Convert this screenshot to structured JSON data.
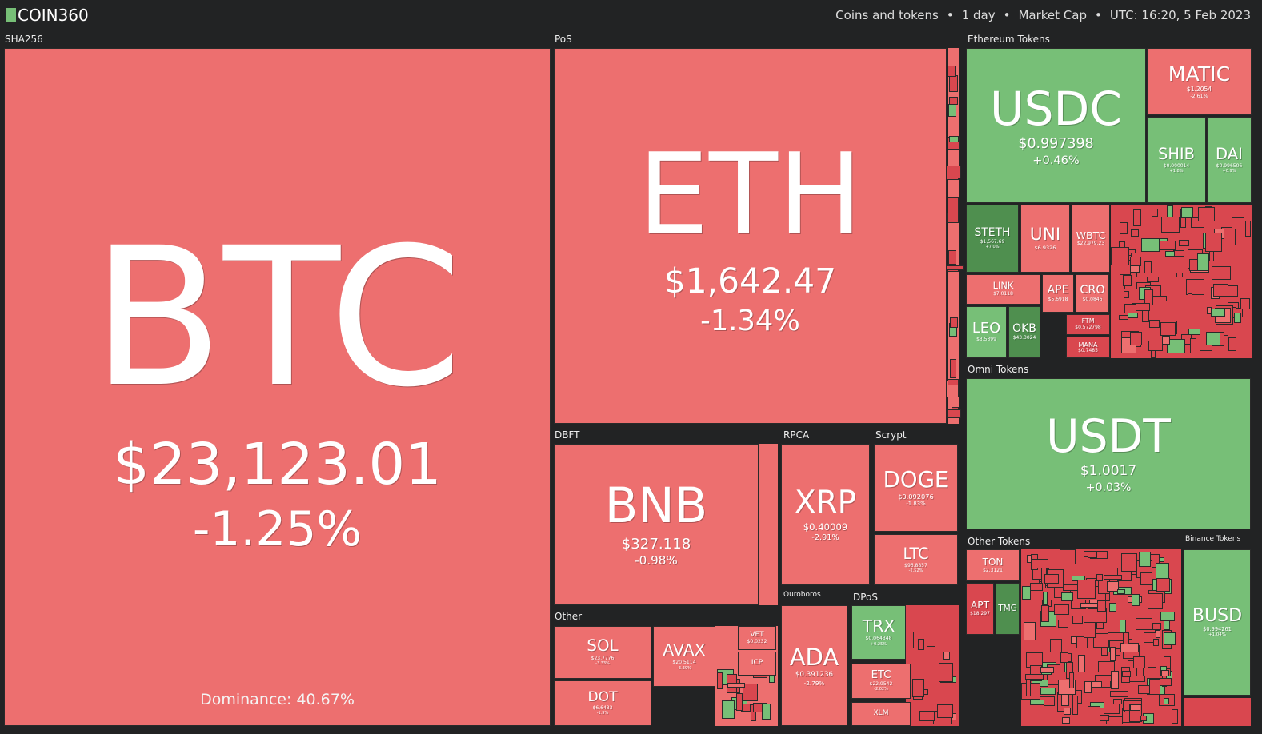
{
  "header": {
    "logo": "COIN360",
    "filters": [
      "Coins and tokens",
      "1 day",
      "Market Cap",
      "UTC: 16:20, 5 Feb 2023"
    ],
    "separator": "•"
  },
  "groups": [
    "SHA256",
    "PoS",
    "Ethereum Tokens",
    "DBFT",
    "RPCA",
    "Scrypt",
    "Other",
    "Ouroboros",
    "DPoS",
    "Omni Tokens",
    "Other Tokens",
    "Binance Tokens"
  ],
  "dominance": "Dominance: 40.67%",
  "tiles": [
    {
      "symbol": "BTC",
      "price": "$23,123.01",
      "change": "-1.25%",
      "color": "#ed6f6f"
    },
    {
      "symbol": "ETH",
      "price": "$1,642.47",
      "change": "-1.34%",
      "color": "#ed6f6f"
    },
    {
      "symbol": "BNB",
      "price": "$327.118",
      "change": "-0.98%",
      "color": "#ed6f6f"
    },
    {
      "symbol": "XRP",
      "price": "$0.40009",
      "change": "-2.91%",
      "color": "#ed6f6f"
    },
    {
      "symbol": "DOGE",
      "price": "$0.092076",
      "change": "-1.83%",
      "color": "#ed6f6f"
    },
    {
      "symbol": "LTC",
      "price": "$96.8857",
      "change": "-2.52%",
      "color": "#ed6f6f"
    },
    {
      "symbol": "ADA",
      "price": "$0.391236",
      "change": "-2.79%",
      "color": "#ed6f6f"
    },
    {
      "symbol": "TRX",
      "price": "$0.064348",
      "change": "+0.25%",
      "color": "#77bf77"
    },
    {
      "symbol": "ETC",
      "price": "$22.9542",
      "change": "-2.02%",
      "color": "#ed6f6f"
    },
    {
      "symbol": "XLM",
      "price": "",
      "change": "",
      "color": "#ed6f6f"
    },
    {
      "symbol": "SOL",
      "price": "$23.7776",
      "change": "-3.33%",
      "color": "#ed6f6f"
    },
    {
      "symbol": "DOT",
      "price": "$6.6433",
      "change": "-1.9%",
      "color": "#ed6f6f"
    },
    {
      "symbol": "AVAX",
      "price": "$20.5114",
      "change": "-3.39%",
      "color": "#ed6f6f"
    },
    {
      "symbol": "VET",
      "price": "$0.0232",
      "change": "",
      "color": "#ed6f6f"
    },
    {
      "symbol": "ICP",
      "price": "",
      "change": "",
      "color": "#ed6f6f"
    },
    {
      "symbol": "USDC",
      "price": "$0.997398",
      "change": "+0.46%",
      "color": "#77bf77"
    },
    {
      "symbol": "MATIC",
      "price": "$1.2054",
      "change": "-2.61%",
      "color": "#ed6f6f"
    },
    {
      "symbol": "SHIB",
      "price": "$0.000014",
      "change": "+1.8%",
      "color": "#77bf77"
    },
    {
      "symbol": "DAI",
      "price": "$0.996506",
      "change": "+0.9%",
      "color": "#77bf77"
    },
    {
      "symbol": "STETH",
      "price": "$1,567.69",
      "change": "+7.0%",
      "color": "#4f8f4f"
    },
    {
      "symbol": "UNI",
      "price": "$6.9326",
      "change": "",
      "color": "#ed6f6f"
    },
    {
      "symbol": "WBTC",
      "price": "$22,979.23",
      "change": "",
      "color": "#ed6f6f"
    },
    {
      "symbol": "LINK",
      "price": "$7.0118",
      "change": "",
      "color": "#ed6f6f"
    },
    {
      "symbol": "LEO",
      "price": "$3.5399",
      "change": "",
      "color": "#77bf77"
    },
    {
      "symbol": "OKB",
      "price": "$43.3024",
      "change": "",
      "color": "#4f8f4f"
    },
    {
      "symbol": "APE",
      "price": "$5.6918",
      "change": "",
      "color": "#ed6f6f"
    },
    {
      "symbol": "CRO",
      "price": "$0.0846",
      "change": "",
      "color": "#ed6f6f"
    },
    {
      "symbol": "FTM",
      "price": "$0.572798",
      "change": "",
      "color": "#d9474f"
    },
    {
      "symbol": "MANA",
      "price": "$0.7485",
      "change": "",
      "color": "#d9474f"
    },
    {
      "symbol": "USDT",
      "price": "$1.0017",
      "change": "+0.03%",
      "color": "#77bf77"
    },
    {
      "symbol": "TON",
      "price": "$2.3121",
      "change": "",
      "color": "#ed6f6f"
    },
    {
      "symbol": "APT",
      "price": "$18.297",
      "change": "",
      "color": "#d9474f"
    },
    {
      "symbol": "TMG",
      "price": "",
      "change": "",
      "color": "#4f8f4f"
    },
    {
      "symbol": "BUSD",
      "price": "$0.994261",
      "change": "+1.04%",
      "color": "#77bf77"
    }
  ]
}
